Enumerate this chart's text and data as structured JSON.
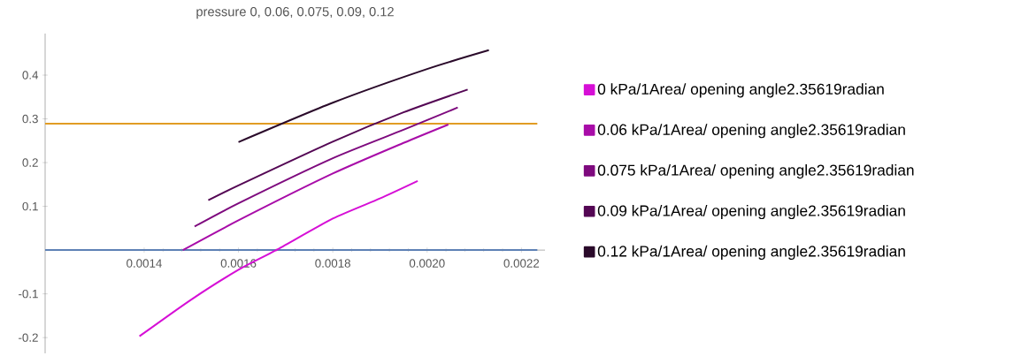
{
  "chart_data": {
    "type": "line",
    "title": "pressure 0, 0.06, 0.075, 0.09, 0.12",
    "xlim": [
      0.00119,
      0.00225
    ],
    "ylim": [
      -0.236,
      0.495
    ],
    "xticks": [
      0.0014,
      0.0016,
      0.0018,
      {
        "value": 0.002,
        "label": "0.0020"
      },
      0.0022
    ],
    "yticks": [
      -0.2,
      -0.1,
      0.1,
      0.2,
      0.3,
      0.4
    ],
    "grid": false,
    "legend": "right",
    "marker": "none",
    "line_style": "solid",
    "ref_lines": [
      {
        "axis": "y",
        "value": 0,
        "color": "#5e81b5"
      },
      {
        "axis": "y",
        "value": 0.289,
        "color": "#e19c24"
      }
    ],
    "series": [
      {
        "name": "0 kPa/1Area/ opening angle2.35619radian",
        "color": "#d60fd6",
        "x": [
          0.00139,
          0.0015,
          0.0016,
          0.00168,
          0.0018,
          0.0019,
          0.00198
        ],
        "values": [
          -0.197,
          -0.113,
          -0.045,
          0,
          0.072,
          0.118,
          0.158
        ]
      },
      {
        "name": "0.06 kPa/1Area/ opening angle2.35619radian",
        "color": "#a80ca8",
        "x": [
          0.001482,
          0.0016,
          0.0018,
          0.00195,
          0.002045
        ],
        "values": [
          0,
          0.068,
          0.175,
          0.245,
          0.287
        ]
      },
      {
        "name": "0.075 kPa/1Area/ opening angle2.35619radian",
        "color": "#7e0a7e",
        "x": [
          0.001507,
          0.0016,
          0.0018,
          0.00195,
          0.002065
        ],
        "values": [
          0.054,
          0.107,
          0.21,
          0.275,
          0.326
        ]
      },
      {
        "name": "0.09 kPa/1Area/ opening angle2.35619radian",
        "color": "#540754",
        "x": [
          0.001536,
          0.0016,
          0.0018,
          0.00195,
          0.002086
        ],
        "values": [
          0.114,
          0.148,
          0.248,
          0.315,
          0.367
        ]
      },
      {
        "name": "0.12 kPa/1Area/ opening angle2.35619radian",
        "color": "#2a0a2a",
        "x": [
          0.0016,
          0.0018,
          0.002,
          0.002131
        ],
        "values": [
          0.247,
          0.337,
          0.414,
          0.457
        ]
      }
    ]
  }
}
